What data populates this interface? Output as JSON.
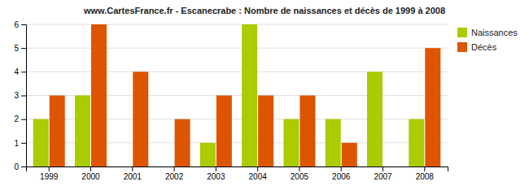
{
  "chart_data": {
    "type": "bar",
    "title": "www.CartesFrance.fr - Escanecrabe : Nombre de naissances et décès de 1999 à 2008",
    "categories": [
      "1999",
      "2000",
      "2001",
      "2002",
      "2003",
      "2004",
      "2005",
      "2006",
      "2007",
      "2008"
    ],
    "series": [
      {
        "name": "Naissances",
        "color": "#aacc00",
        "values": [
          2,
          3,
          0,
          0,
          1,
          6,
          2,
          2,
          4,
          2
        ]
      },
      {
        "name": "Décès",
        "color": "#dd5500",
        "values": [
          3,
          6,
          4,
          2,
          3,
          3,
          3,
          1,
          0,
          5
        ]
      }
    ],
    "ylim": [
      0,
      6
    ],
    "yticks": [
      0,
      1,
      2,
      3,
      4,
      5,
      6
    ],
    "grid": true,
    "legend": "top-right"
  }
}
